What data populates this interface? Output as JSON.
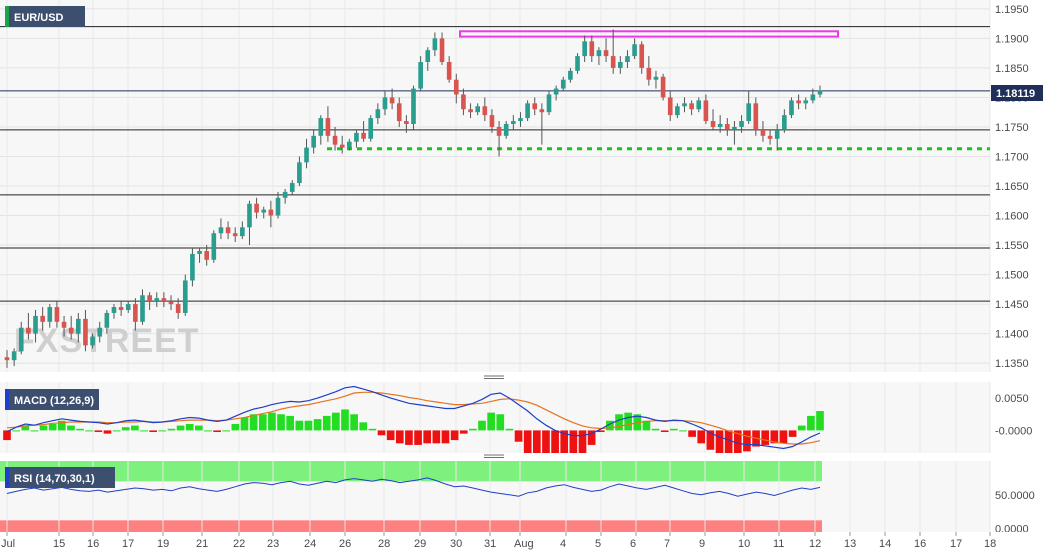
{
  "chart_data": [
    {
      "type": "candlestick",
      "symbol": "EUR/USD",
      "last_price": "1.18119",
      "ylim": [
        1.1335,
        1.1965
      ],
      "y_ticks": [
        "1.1950",
        "1.1900",
        "1.1850",
        "1.1800",
        "1.1750",
        "1.1700",
        "1.1650",
        "1.1600",
        "1.1550",
        "1.1500",
        "1.1450",
        "1.1400",
        "1.1350"
      ],
      "x_ticks": [
        "Jul",
        "15",
        "16",
        "17",
        "19",
        "21",
        "22",
        "23",
        "24",
        "26",
        "28",
        "29",
        "30",
        "31",
        "Aug",
        "4",
        "5",
        "6",
        "7",
        "9",
        "10",
        "11",
        "12",
        "13",
        "14",
        "16",
        "17",
        "18"
      ],
      "horizontal_lines": [
        1.192,
        1.1811,
        1.1745,
        1.1635,
        1.1545,
        1.1455
      ],
      "support_level": 1.1713,
      "resistance_zone": [
        1.1903,
        1.1912
      ],
      "watermark": "FXSTREET",
      "candles": [
        [
          1.136,
          1.1372,
          1.1342,
          1.1355
        ],
        [
          1.1355,
          1.1375,
          1.1345,
          1.137
        ],
        [
          1.137,
          1.142,
          1.1365,
          1.141
        ],
        [
          1.141,
          1.1435,
          1.139,
          1.14
        ],
        [
          1.14,
          1.144,
          1.1385,
          1.143
        ],
        [
          1.143,
          1.1445,
          1.1405,
          1.142
        ],
        [
          1.142,
          1.145,
          1.141,
          1.1445
        ],
        [
          1.1445,
          1.1455,
          1.141,
          1.142
        ],
        [
          1.142,
          1.143,
          1.1395,
          1.141
        ],
        [
          1.141,
          1.143,
          1.139,
          1.14
        ],
        [
          1.14,
          1.1435,
          1.1385,
          1.1425
        ],
        [
          1.1425,
          1.144,
          1.137,
          1.138
        ],
        [
          1.138,
          1.14,
          1.1375,
          1.1395
        ],
        [
          1.1395,
          1.142,
          1.1385,
          1.141
        ],
        [
          1.141,
          1.144,
          1.14,
          1.1435
        ],
        [
          1.1435,
          1.145,
          1.1425,
          1.1445
        ],
        [
          1.1445,
          1.1455,
          1.143,
          1.144
        ],
        [
          1.144,
          1.1455,
          1.1435,
          1.145
        ],
        [
          1.145,
          1.146,
          1.1405,
          1.142
        ],
        [
          1.142,
          1.1475,
          1.1415,
          1.1465
        ],
        [
          1.1465,
          1.147,
          1.144,
          1.1455
        ],
        [
          1.1455,
          1.147,
          1.1445,
          1.146
        ],
        [
          1.146,
          1.147,
          1.1445,
          1.1455
        ],
        [
          1.1455,
          1.1465,
          1.144,
          1.145
        ],
        [
          1.145,
          1.146,
          1.1425,
          1.1435
        ],
        [
          1.1435,
          1.15,
          1.143,
          1.149
        ],
        [
          1.149,
          1.1545,
          1.148,
          1.1535
        ],
        [
          1.1535,
          1.1545,
          1.152,
          1.154
        ],
        [
          1.154,
          1.155,
          1.1515,
          1.1525
        ],
        [
          1.1525,
          1.1575,
          1.152,
          1.157
        ],
        [
          1.157,
          1.1595,
          1.156,
          1.158
        ],
        [
          1.158,
          1.159,
          1.156,
          1.157
        ],
        [
          1.157,
          1.158,
          1.1555,
          1.1565
        ],
        [
          1.1565,
          1.159,
          1.156,
          1.158
        ],
        [
          1.158,
          1.1625,
          1.155,
          1.162
        ],
        [
          1.162,
          1.163,
          1.1595,
          1.1605
        ],
        [
          1.1605,
          1.1615,
          1.1595,
          1.161
        ],
        [
          1.161,
          1.1625,
          1.158,
          1.16
        ],
        [
          1.16,
          1.164,
          1.1595,
          1.163
        ],
        [
          1.163,
          1.1645,
          1.162,
          1.164
        ],
        [
          1.164,
          1.166,
          1.1635,
          1.1655
        ],
        [
          1.1655,
          1.17,
          1.165,
          1.169
        ],
        [
          1.169,
          1.173,
          1.168,
          1.1715
        ],
        [
          1.1715,
          1.1745,
          1.1705,
          1.1735
        ],
        [
          1.1735,
          1.177,
          1.172,
          1.1765
        ],
        [
          1.1765,
          1.1785,
          1.1725,
          1.1735
        ],
        [
          1.1735,
          1.175,
          1.171,
          1.172
        ],
        [
          1.172,
          1.1735,
          1.1705,
          1.1715
        ],
        [
          1.1715,
          1.173,
          1.171,
          1.1725
        ],
        [
          1.1725,
          1.1745,
          1.1715,
          1.174
        ],
        [
          1.174,
          1.176,
          1.1725,
          1.173
        ],
        [
          1.173,
          1.177,
          1.1725,
          1.1765
        ],
        [
          1.1765,
          1.179,
          1.1755,
          1.178
        ],
        [
          1.178,
          1.181,
          1.177,
          1.18
        ],
        [
          1.18,
          1.1815,
          1.178,
          1.179
        ],
        [
          1.179,
          1.18,
          1.175,
          1.176
        ],
        [
          1.176,
          1.177,
          1.174,
          1.1755
        ],
        [
          1.1755,
          1.182,
          1.1745,
          1.1815
        ],
        [
          1.1815,
          1.187,
          1.181,
          1.186
        ],
        [
          1.186,
          1.1885,
          1.1845,
          1.188
        ],
        [
          1.188,
          1.191,
          1.187,
          1.19
        ],
        [
          1.19,
          1.191,
          1.1855,
          1.186
        ],
        [
          1.186,
          1.187,
          1.1825,
          1.183
        ],
        [
          1.183,
          1.184,
          1.179,
          1.1805
        ],
        [
          1.1805,
          1.1815,
          1.177,
          1.178
        ],
        [
          1.178,
          1.179,
          1.1765,
          1.1775
        ],
        [
          1.1775,
          1.179,
          1.177,
          1.1785
        ],
        [
          1.1785,
          1.18,
          1.176,
          1.177
        ],
        [
          1.177,
          1.178,
          1.174,
          1.175
        ],
        [
          1.175,
          1.176,
          1.17,
          1.1735
        ],
        [
          1.1735,
          1.176,
          1.173,
          1.1755
        ],
        [
          1.1755,
          1.177,
          1.1745,
          1.176
        ],
        [
          1.176,
          1.1775,
          1.175,
          1.1765
        ],
        [
          1.1765,
          1.1795,
          1.176,
          1.179
        ],
        [
          1.179,
          1.18,
          1.177,
          1.178
        ],
        [
          1.178,
          1.179,
          1.172,
          1.1775
        ],
        [
          1.1775,
          1.181,
          1.177,
          1.1805
        ],
        [
          1.1805,
          1.182,
          1.1795,
          1.1815
        ],
        [
          1.1815,
          1.1835,
          1.181,
          1.183
        ],
        [
          1.183,
          1.185,
          1.1825,
          1.1845
        ],
        [
          1.1845,
          1.1875,
          1.184,
          1.187
        ],
        [
          1.187,
          1.1905,
          1.186,
          1.1895
        ],
        [
          1.1895,
          1.1905,
          1.186,
          1.187
        ],
        [
          1.187,
          1.1885,
          1.1855,
          1.188
        ],
        [
          1.188,
          1.19,
          1.186,
          1.187
        ],
        [
          1.187,
          1.1915,
          1.184,
          1.185
        ],
        [
          1.185,
          1.187,
          1.184,
          1.186
        ],
        [
          1.186,
          1.188,
          1.185,
          1.187
        ],
        [
          1.187,
          1.19,
          1.1865,
          1.189
        ],
        [
          1.189,
          1.1895,
          1.184,
          1.185
        ],
        [
          1.185,
          1.187,
          1.182,
          1.183
        ],
        [
          1.183,
          1.1845,
          1.1815,
          1.1835
        ],
        [
          1.1835,
          1.184,
          1.1795,
          1.18
        ],
        [
          1.18,
          1.181,
          1.176,
          1.177
        ],
        [
          1.177,
          1.179,
          1.1765,
          1.1785
        ],
        [
          1.1785,
          1.18,
          1.1775,
          1.179
        ],
        [
          1.179,
          1.1795,
          1.177,
          1.178
        ],
        [
          1.178,
          1.18,
          1.1775,
          1.1795
        ],
        [
          1.1795,
          1.1805,
          1.1755,
          1.176
        ],
        [
          1.176,
          1.178,
          1.1745,
          1.175
        ],
        [
          1.175,
          1.177,
          1.174,
          1.1755
        ],
        [
          1.1755,
          1.1765,
          1.1735,
          1.1745
        ],
        [
          1.1745,
          1.176,
          1.172,
          1.175
        ],
        [
          1.175,
          1.177,
          1.174,
          1.176
        ],
        [
          1.176,
          1.181,
          1.1755,
          1.179
        ],
        [
          1.179,
          1.18,
          1.1735,
          1.1745
        ],
        [
          1.1745,
          1.176,
          1.1725,
          1.1735
        ],
        [
          1.1735,
          1.1745,
          1.172,
          1.173
        ],
        [
          1.173,
          1.1755,
          1.171,
          1.1745
        ],
        [
          1.1745,
          1.178,
          1.174,
          1.177
        ],
        [
          1.177,
          1.18,
          1.1765,
          1.1795
        ],
        [
          1.1795,
          1.1805,
          1.178,
          1.179
        ],
        [
          1.179,
          1.18,
          1.178,
          1.1795
        ],
        [
          1.1795,
          1.1815,
          1.179,
          1.1805
        ],
        [
          1.1805,
          1.182,
          1.18,
          1.1812
        ]
      ]
    },
    {
      "type": "line",
      "indicator": "MACD (12,26,9)",
      "ylim": [
        -0.0035,
        0.0075
      ],
      "y_ticks": [
        "0.0050",
        "-0.0000"
      ],
      "series": [
        {
          "name": "MACD",
          "color": "#1f3fc9",
          "values": [
            -0.0002,
            0.0005,
            0.001,
            0.0008,
            0.0012,
            0.0015,
            0.0018,
            0.0016,
            0.0014,
            0.0013,
            0.0012,
            0.001,
            0.0012,
            0.0015,
            0.0016,
            0.0014,
            0.0012,
            0.0013,
            0.0015,
            0.0018,
            0.002,
            0.0019,
            0.0016,
            0.0014,
            0.0016,
            0.0022,
            0.0028,
            0.0033,
            0.0036,
            0.004,
            0.0043,
            0.0045,
            0.0044,
            0.0046,
            0.005,
            0.0055,
            0.006,
            0.0066,
            0.0068,
            0.0064,
            0.006,
            0.0055,
            0.005,
            0.0046,
            0.0042,
            0.004,
            0.0038,
            0.0036,
            0.0034,
            0.0034,
            0.0038,
            0.0042,
            0.0048,
            0.0056,
            0.0058,
            0.005,
            0.004,
            0.003,
            0.0018,
            0.0008,
            0.0,
            -0.0005,
            -0.0008,
            -0.0008,
            -0.0005,
            0.0002,
            0.001,
            0.0016,
            0.002,
            0.0022,
            0.002,
            0.0016,
            0.0014,
            0.0016,
            0.0015,
            0.001,
            0.0004,
            -0.0004,
            -0.001,
            -0.0015,
            -0.002,
            -0.0022,
            -0.0022,
            -0.0024,
            -0.0026,
            -0.0028,
            -0.0025,
            -0.0018,
            -0.001,
            -0.0004
          ]
        },
        {
          "name": "Signal",
          "color": "#e8731e",
          "values": [
            0.0004,
            0.0005,
            0.0007,
            0.0008,
            0.0009,
            0.0011,
            0.0012,
            0.0013,
            0.0013,
            0.0013,
            0.0013,
            0.0012,
            0.0012,
            0.0013,
            0.0013,
            0.0014,
            0.0013,
            0.0013,
            0.0014,
            0.0015,
            0.0016,
            0.0016,
            0.0016,
            0.0015,
            0.0016,
            0.0018,
            0.002,
            0.0023,
            0.0026,
            0.0029,
            0.0033,
            0.0036,
            0.0038,
            0.004,
            0.0043,
            0.0046,
            0.0049,
            0.0053,
            0.0058,
            0.0059,
            0.0059,
            0.0058,
            0.0056,
            0.0054,
            0.0051,
            0.0049,
            0.0046,
            0.0044,
            0.0042,
            0.004,
            0.004,
            0.0041,
            0.0042,
            0.0045,
            0.0048,
            0.0049,
            0.0047,
            0.0044,
            0.0039,
            0.0032,
            0.0025,
            0.0018,
            0.0012,
            0.0007,
            0.0004,
            0.0003,
            0.0004,
            0.0006,
            0.0009,
            0.0012,
            0.0014,
            0.0015,
            0.0015,
            0.0015,
            0.0015,
            0.0014,
            0.0012,
            0.0008,
            0.0004,
            -0.0001,
            -0.0005,
            -0.0009,
            -0.0012,
            -0.0015,
            -0.0018,
            -0.002,
            -0.0021,
            -0.0021,
            -0.0019,
            -0.0016
          ]
        }
      ]
    },
    {
      "type": "line",
      "indicator": "RSI (14,70,30,1)",
      "ylim": [
        -5,
        100
      ],
      "levels": [
        70,
        30
      ],
      "y_ticks": [
        "50.0000",
        "0.0000"
      ],
      "series": [
        {
          "name": "RSI",
          "color": "#1f3fc9",
          "values": [
            52,
            55,
            58,
            60,
            57,
            59,
            61,
            58,
            56,
            55,
            57,
            54,
            56,
            58,
            60,
            59,
            57,
            58,
            56,
            60,
            62,
            59,
            57,
            55,
            58,
            62,
            66,
            68,
            67,
            65,
            68,
            70,
            66,
            64,
            67,
            70,
            68,
            72,
            74,
            72,
            70,
            73,
            71,
            68,
            70,
            72,
            75,
            71,
            66,
            62,
            63,
            60,
            57,
            54,
            52,
            50,
            48,
            53,
            55,
            60,
            63,
            65,
            61,
            58,
            55,
            57,
            62,
            66,
            63,
            60,
            58,
            61,
            64,
            60,
            56,
            52,
            50,
            53,
            55,
            52,
            48,
            51,
            54,
            52,
            49,
            53,
            57,
            60,
            58,
            61
          ]
        }
      ]
    }
  ]
}
